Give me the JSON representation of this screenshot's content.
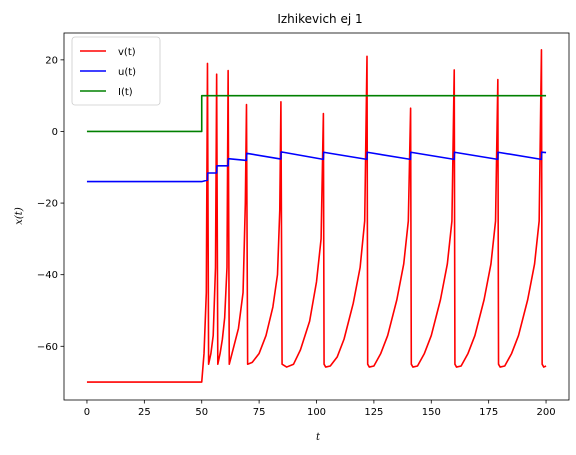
{
  "chart_data": {
    "type": "line",
    "title": "Izhikevich ej 1",
    "xlabel": "t",
    "ylabel": "x(t)",
    "xlim": [
      -10,
      210
    ],
    "ylim": [
      -75,
      27.5
    ],
    "xticks": [
      0,
      25,
      50,
      75,
      100,
      125,
      150,
      175,
      200
    ],
    "yticks": [
      -60,
      -40,
      -20,
      0,
      20
    ],
    "grid": false,
    "legend_position": "top-left",
    "spike_times": [
      52.5,
      56.5,
      61.5,
      69.5,
      84.5,
      103.0,
      122.0,
      141.0,
      160.0,
      179.0,
      198.0
    ],
    "spike_peaks": [
      19,
      16,
      17,
      7.5,
      8.3,
      5,
      21,
      6.5,
      17.2,
      14.5,
      22.8
    ],
    "series": [
      {
        "name": "v(t)",
        "color": "#ff0000",
        "x": [
          0,
          50,
          51,
          52,
          52.5,
          53,
          54,
          55,
          56,
          56.5,
          57,
          58,
          59,
          60,
          61,
          61.5,
          62,
          64,
          66,
          68,
          69,
          69.5,
          70,
          72,
          75,
          78,
          81,
          83,
          84,
          84.5,
          85,
          87,
          90,
          93,
          97,
          100,
          102,
          103,
          103.3,
          104,
          106,
          109,
          112,
          116,
          119,
          121,
          122,
          122.3,
          123,
          125,
          128,
          131,
          135,
          138,
          140,
          141,
          141.3,
          142,
          144,
          147,
          150,
          154,
          157,
          159,
          160,
          160.3,
          161,
          163,
          166,
          169,
          173,
          176,
          178,
          179,
          179.3,
          180,
          182,
          185,
          188,
          192,
          195,
          197,
          198,
          198.3,
          199,
          200
        ],
        "y": [
          -70,
          -70,
          -62,
          -45,
          19,
          -65,
          -62,
          -57,
          -38,
          16,
          -65,
          -62,
          -58,
          -52,
          -38,
          17,
          -65,
          -60,
          -55,
          -45,
          -20,
          7.5,
          -65,
          -64.5,
          -62,
          -57,
          -49,
          -40,
          -22,
          8.3,
          -65,
          -65.8,
          -65,
          -61,
          -53,
          -42,
          -30,
          5,
          -65,
          -65.8,
          -65.5,
          -63,
          -58,
          -48,
          -38,
          -25,
          21,
          -65,
          -65.8,
          -65.5,
          -62,
          -57,
          -47,
          -37,
          -25,
          6.5,
          -65,
          -65.8,
          -65.5,
          -62,
          -57,
          -47,
          -37,
          -25,
          17.2,
          -65,
          -65.8,
          -65.5,
          -62,
          -57,
          -47,
          -37,
          -25,
          14.5,
          -65,
          -65.8,
          -65.5,
          -62,
          -57,
          -47,
          -37,
          -25,
          22.8,
          -65,
          -65.8,
          -65.5
        ]
      },
      {
        "name": "u(t)",
        "color": "#0000ff",
        "x": [
          0,
          50,
          52.5,
          52.6,
          56.5,
          56.6,
          61.5,
          61.6,
          69.5,
          69.6,
          84.5,
          84.6,
          103,
          103.1,
          122,
          122.1,
          141,
          141.1,
          160,
          160.1,
          179,
          179.1,
          198,
          198.1,
          200
        ],
        "y": [
          -14,
          -14,
          -13.6,
          -11.6,
          -11.6,
          -9.6,
          -9.6,
          -7.6,
          -8.1,
          -6.1,
          -7.7,
          -5.7,
          -7.8,
          -5.8,
          -7.8,
          -5.8,
          -7.8,
          -5.8,
          -7.8,
          -5.8,
          -7.8,
          -5.8,
          -7.8,
          -5.8,
          -5.9
        ]
      },
      {
        "name": "I(t)",
        "color": "#008000",
        "x": [
          0,
          50,
          50,
          200
        ],
        "y": [
          0,
          0,
          10,
          10
        ]
      }
    ]
  }
}
